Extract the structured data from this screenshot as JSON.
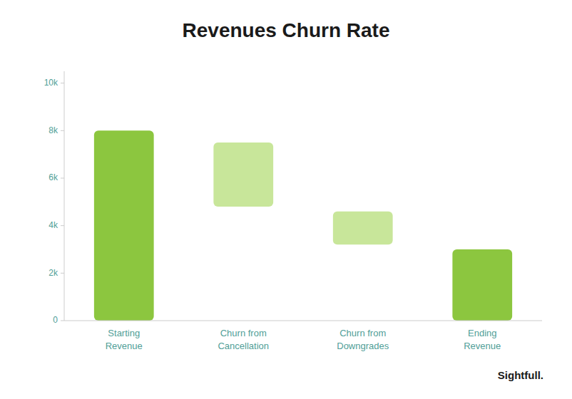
{
  "chart_data": {
    "type": "bar",
    "title": "Revenues Churn Rate",
    "categories": [
      "Starting\nRevenue",
      "Churn from\nCancellation",
      "Churn from\nDowngrades",
      "Ending\nRevenue"
    ],
    "values": [
      8000,
      7500,
      4600,
      3000
    ],
    "bottoms": [
      0,
      4800,
      3200,
      0
    ],
    "colors": [
      "#8CC63F",
      "#C8E69A",
      "#C8E69A",
      "#8CC63F"
    ],
    "ylim": [
      0,
      10500
    ],
    "yticks": [
      0,
      {
        "value": 2000,
        "label": "2k"
      },
      {
        "value": 4000,
        "label": "4k"
      },
      {
        "value": 6000,
        "label": "6k"
      },
      {
        "value": 8000,
        "label": "8k"
      },
      {
        "value": 10000,
        "label": "10k"
      }
    ],
    "grid": false,
    "annotations": [
      "Sightfull."
    ]
  }
}
